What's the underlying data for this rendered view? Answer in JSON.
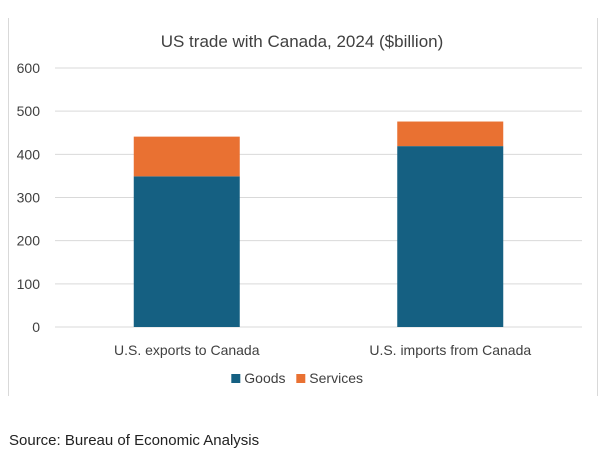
{
  "chart_data": {
    "type": "bar",
    "stacked": true,
    "title": "US trade with Canada, 2024 ($billion)",
    "xlabel": "",
    "ylabel": "",
    "categories": [
      "U.S. exports to Canada",
      "U.S. imports from Canada"
    ],
    "series": [
      {
        "name": "Goods",
        "values": [
          349,
          419
        ],
        "color": "#156082"
      },
      {
        "name": "Services",
        "values": [
          92,
          57
        ],
        "color": "#e97132"
      }
    ],
    "ylim": [
      0,
      600
    ],
    "yticks": [
      0,
      100,
      200,
      300,
      400,
      500,
      600
    ],
    "grid": true,
    "legend_position": "bottom"
  },
  "source": "Source: Bureau of Economic Analysis"
}
